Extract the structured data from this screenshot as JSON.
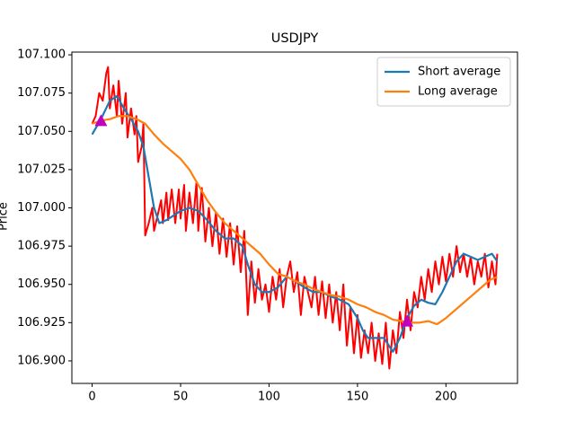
{
  "chart_data": {
    "type": "line",
    "title": "USDJPY",
    "ylabel": "Price",
    "xlim": [
      -11.45,
      240.45
    ],
    "ylim": [
      106.8853,
      107.1018
    ],
    "xticks": [
      0,
      50,
      100,
      150,
      200
    ],
    "yticks": [
      {
        "value": 106.9,
        "label": "106.900"
      },
      106.925,
      {
        "value": 106.95,
        "label": "106.950"
      },
      106.975,
      {
        "value": 107.0,
        "label": "107.000"
      },
      107.025,
      {
        "value": 107.05,
        "label": "107.050"
      },
      107.075,
      {
        "value": 107.1,
        "label": "107.100"
      }
    ],
    "legend": "upper right",
    "series": [
      {
        "color": "#ff0000",
        "x": [
          0,
          2,
          4,
          6,
          8,
          9,
          10,
          12,
          14,
          15,
          17,
          19,
          20,
          22,
          24,
          25,
          26,
          28,
          29,
          30,
          32,
          34,
          35,
          37,
          39,
          40,
          42,
          43,
          45,
          47,
          49,
          50,
          52,
          53,
          55,
          57,
          59,
          60,
          62,
          64,
          66,
          68,
          70,
          72,
          74,
          76,
          78,
          80,
          82,
          84,
          86,
          88,
          90,
          92,
          94,
          96,
          98,
          100,
          102,
          104,
          106,
          108,
          110,
          112,
          114,
          116,
          118,
          120,
          122,
          124,
          126,
          128,
          130,
          132,
          134,
          136,
          138,
          140,
          142,
          144,
          146,
          148,
          150,
          152,
          154,
          156,
          158,
          160,
          162,
          164,
          166,
          168,
          170,
          172,
          174,
          176,
          178,
          180,
          182,
          184,
          186,
          188,
          190,
          192,
          194,
          196,
          198,
          200,
          202,
          204,
          206,
          208,
          210,
          212,
          214,
          216,
          218,
          220,
          222,
          224,
          226,
          228,
          229
        ],
        "values": [
          107.055,
          107.06,
          107.075,
          107.07,
          107.088,
          107.092,
          107.065,
          107.08,
          107.06,
          107.083,
          107.055,
          107.075,
          107.046,
          107.065,
          107.048,
          107.06,
          107.03,
          107.04,
          107.055,
          106.982,
          106.99,
          107.0,
          106.985,
          106.995,
          107.005,
          106.99,
          107.01,
          106.992,
          107.012,
          106.99,
          107.012,
          106.993,
          107.015,
          106.985,
          107.01,
          106.99,
          107.017,
          106.985,
          107.013,
          106.978,
          107.0,
          106.975,
          106.997,
          106.97,
          106.993,
          106.968,
          106.99,
          106.963,
          106.988,
          106.958,
          106.985,
          106.93,
          106.965,
          106.938,
          106.96,
          106.94,
          106.95,
          106.932,
          106.955,
          106.94,
          106.96,
          106.935,
          106.955,
          106.965,
          106.945,
          106.958,
          106.93,
          106.955,
          106.945,
          106.935,
          106.955,
          106.93,
          106.952,
          106.928,
          106.95,
          106.925,
          106.945,
          106.92,
          106.95,
          106.91,
          106.935,
          106.905,
          106.93,
          106.902,
          106.92,
          106.905,
          106.925,
          106.9,
          106.918,
          106.898,
          106.925,
          106.895,
          106.92,
          106.905,
          106.932,
          106.915,
          106.94,
          106.92,
          106.945,
          106.935,
          106.955,
          106.94,
          106.96,
          106.945,
          106.965,
          106.95,
          106.968,
          106.952,
          106.97,
          106.955,
          106.975,
          106.958,
          106.97,
          106.955,
          106.968,
          106.95,
          106.965,
          106.955,
          106.97,
          106.948,
          106.965,
          106.95,
          106.97
        ]
      },
      {
        "name": "Short average",
        "color": "#1f77b4",
        "x": [
          0,
          5,
          10,
          14,
          18,
          22,
          26,
          29,
          32,
          35,
          38,
          42,
          46,
          50,
          55,
          60,
          65,
          70,
          75,
          80,
          85,
          88,
          92,
          96,
          100,
          105,
          110,
          115,
          120,
          125,
          130,
          135,
          140,
          145,
          150,
          153,
          156,
          160,
          165,
          170,
          174,
          178,
          182,
          186,
          190,
          194,
          198,
          202,
          206,
          210,
          214,
          218,
          222,
          226,
          229
        ],
        "values": [
          107.048,
          107.058,
          107.07,
          107.073,
          107.065,
          107.058,
          107.05,
          107.04,
          107.02,
          107.0,
          106.99,
          106.992,
          106.995,
          106.998,
          107.0,
          106.998,
          106.992,
          106.985,
          106.98,
          106.98,
          106.975,
          106.963,
          106.95,
          106.945,
          106.945,
          106.948,
          106.955,
          106.952,
          106.948,
          106.945,
          106.945,
          106.942,
          106.94,
          106.937,
          106.928,
          106.92,
          106.915,
          106.915,
          106.915,
          106.906,
          106.915,
          106.928,
          106.936,
          106.94,
          106.938,
          106.937,
          106.945,
          106.955,
          106.965,
          106.97,
          106.968,
          106.966,
          106.968,
          106.97,
          106.965
        ]
      },
      {
        "name": "Long average",
        "color": "#ff7f0e",
        "x": [
          0,
          5,
          10,
          15,
          20,
          25,
          30,
          35,
          40,
          45,
          50,
          55,
          60,
          65,
          70,
          75,
          80,
          85,
          90,
          95,
          100,
          105,
          110,
          115,
          120,
          125,
          130,
          135,
          140,
          145,
          150,
          155,
          160,
          165,
          170,
          175,
          180,
          185,
          190,
          195,
          200,
          205,
          210,
          215,
          220,
          225,
          229
        ],
        "values": [
          107.055,
          107.057,
          107.058,
          107.06,
          107.06,
          107.058,
          107.055,
          107.048,
          107.042,
          107.037,
          107.032,
          107.025,
          107.015,
          107.005,
          106.997,
          106.99,
          106.985,
          106.98,
          106.975,
          106.97,
          106.963,
          106.957,
          106.955,
          106.952,
          106.95,
          106.947,
          106.945,
          106.943,
          106.942,
          106.94,
          106.937,
          106.935,
          106.932,
          106.93,
          106.927,
          106.926,
          106.925,
          106.925,
          106.926,
          106.924,
          106.928,
          106.933,
          106.938,
          106.943,
          106.948,
          106.953,
          106.955
        ]
      }
    ],
    "markers": {
      "color": "#bf00bf",
      "x": [
        5,
        178
      ],
      "values": [
        107.057,
        106.926
      ]
    }
  }
}
